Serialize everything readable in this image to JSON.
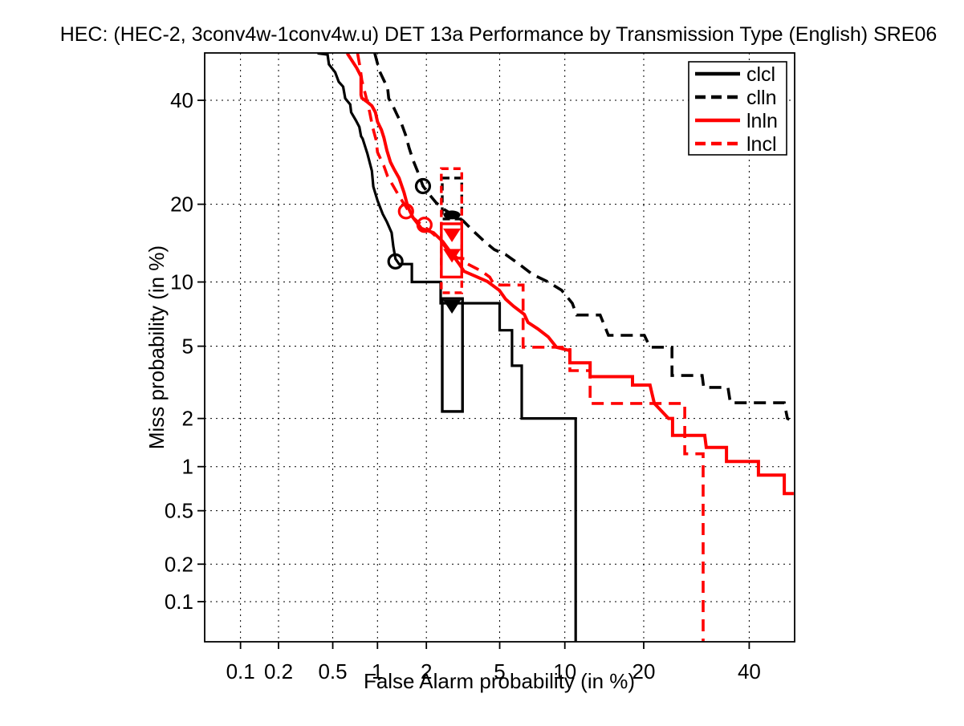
{
  "title": "HEC: (HEC-2, 3conv4w-1conv4w.u) DET 13a Performance by Transmission Type (English) SRE06",
  "axes": {
    "x_label": "False Alarm probability (in %)",
    "y_label": "Miss probability (in %)",
    "ticks": [
      0.1,
      0.2,
      0.5,
      1,
      2,
      5,
      10,
      20,
      40
    ]
  },
  "legend": {
    "position": "upper right",
    "items": [
      "clcl",
      "clln",
      "lnln",
      "lncl"
    ]
  },
  "colors": {
    "black": "#000000",
    "red": "#ff0000",
    "background": "#ffffff"
  },
  "chart_data": {
    "type": "line",
    "subtype": "DET curve, both axes on normal-deviate (probit) scale",
    "title": "HEC: (HEC-2, 3conv4w-1conv4w.u) DET 13a Performance by Transmission Type (English) SRE06",
    "xlabel": "False Alarm probability (in %)",
    "ylabel": "Miss probability (in %)",
    "xlim_pct": [
      0.046,
      50
    ],
    "ylim_pct": [
      0.046,
      50.6
    ],
    "grid": true,
    "legend_position": "upper right",
    "series": [
      {
        "name": "clcl",
        "color": "#000000",
        "line_style": "solid",
        "points": [
          [
            0.39,
            50.5
          ],
          [
            0.46,
            50.2
          ],
          [
            0.47,
            48
          ],
          [
            0.52,
            46.2
          ],
          [
            0.55,
            44.1
          ],
          [
            0.59,
            43
          ],
          [
            0.61,
            40.4
          ],
          [
            0.66,
            39.1
          ],
          [
            0.67,
            37.4
          ],
          [
            0.72,
            35.7
          ],
          [
            0.76,
            34.3
          ],
          [
            0.78,
            32.4
          ],
          [
            0.8,
            31.9
          ],
          [
            0.86,
            28.9
          ],
          [
            0.92,
            25.7
          ],
          [
            0.94,
            22.9
          ],
          [
            1.0,
            20.6
          ],
          [
            1.08,
            18.5
          ],
          [
            1.15,
            17.3
          ],
          [
            1.23,
            15.8
          ],
          [
            1.26,
            14.0
          ],
          [
            1.3,
            12.5
          ],
          [
            1.37,
            11.9
          ],
          [
            1.64,
            11.9
          ],
          [
            1.64,
            10.0
          ],
          [
            2.42,
            10.0
          ],
          [
            2.42,
            8.05
          ],
          [
            5.0,
            8.05
          ],
          [
            5.0,
            6.0
          ],
          [
            5.75,
            6.0
          ],
          [
            5.75,
            3.96
          ],
          [
            6.4,
            3.96
          ],
          [
            6.4,
            2.0
          ],
          [
            11.1,
            2.0
          ],
          [
            11.1,
            0.046
          ]
        ],
        "min_dcf": [
          1.3,
          12.2
        ],
        "actual_dcf": [
          2.8,
          7.85
        ],
        "actual_marker": "triangle",
        "ci_box_fa": [
          2.47,
          3.2
        ],
        "ci_box_miss": [
          2.2,
          8.45
        ]
      },
      {
        "name": "clln",
        "color": "#000000",
        "line_style": "dashed",
        "points": [
          [
            0.96,
            50.5
          ],
          [
            1.03,
            46.5
          ],
          [
            1.1,
            44.4
          ],
          [
            1.16,
            42.7
          ],
          [
            1.18,
            40.4
          ],
          [
            1.26,
            38.6
          ],
          [
            1.33,
            36.9
          ],
          [
            1.42,
            34.9
          ],
          [
            1.5,
            32.7
          ],
          [
            1.58,
            30.0
          ],
          [
            1.67,
            27.6
          ],
          [
            1.77,
            25.7
          ],
          [
            1.91,
            23.0
          ],
          [
            2.08,
            21.6
          ],
          [
            2.27,
            20.3
          ],
          [
            2.49,
            19.3
          ],
          [
            2.86,
            18.3
          ],
          [
            3.22,
            17.5
          ],
          [
            3.67,
            16.0
          ],
          [
            4.16,
            14.7
          ],
          [
            4.7,
            13.6
          ],
          [
            5.35,
            13.0
          ],
          [
            6.13,
            12.0
          ],
          [
            7.17,
            10.8
          ],
          [
            8.47,
            10.0
          ],
          [
            9.7,
            9.2
          ],
          [
            10.75,
            8.05
          ],
          [
            11.2,
            7.1
          ],
          [
            13.9,
            7.1
          ],
          [
            14.95,
            5.67
          ],
          [
            20.1,
            5.67
          ],
          [
            21.0,
            4.94
          ],
          [
            24.7,
            4.94
          ],
          [
            24.7,
            3.51
          ],
          [
            30.3,
            3.51
          ],
          [
            30.6,
            3.02
          ],
          [
            35.5,
            3.02
          ],
          [
            36.0,
            2.47
          ],
          [
            47.7,
            2.47
          ],
          [
            48.4,
            2.0
          ],
          [
            48.8,
            1.97
          ]
        ],
        "min_dcf": [
          1.91,
          23.0
        ],
        "actual_dcf": [
          2.8,
          18.35
        ],
        "actual_marker": "ellipse",
        "ci_box_fa": [
          2.47,
          3.17
        ],
        "ci_box_miss": [
          17.75,
          24.4
        ]
      },
      {
        "name": "lnln",
        "color": "#ff0000",
        "line_style": "solid",
        "points": [
          [
            0.63,
            50.5
          ],
          [
            0.73,
            47.2
          ],
          [
            0.78,
            45.3
          ],
          [
            0.78,
            41.2
          ],
          [
            0.79,
            40.5
          ],
          [
            0.86,
            39.6
          ],
          [
            0.92,
            38.8
          ],
          [
            0.97,
            37.4
          ],
          [
            1.0,
            35.4
          ],
          [
            1.06,
            33.7
          ],
          [
            1.1,
            32.1
          ],
          [
            1.15,
            29.5
          ],
          [
            1.21,
            27.3
          ],
          [
            1.28,
            25.9
          ],
          [
            1.37,
            24.4
          ],
          [
            1.47,
            21.9
          ],
          [
            1.55,
            19.6
          ],
          [
            1.67,
            17.9
          ],
          [
            1.87,
            16.4
          ],
          [
            2.2,
            15.8
          ],
          [
            2.49,
            14.6
          ],
          [
            2.77,
            13.2
          ],
          [
            3.07,
            11.9
          ],
          [
            3.26,
            11.1
          ],
          [
            3.74,
            10.6
          ],
          [
            4.33,
            10.05
          ],
          [
            4.98,
            9.2
          ],
          [
            5.35,
            8.4
          ],
          [
            5.85,
            7.8
          ],
          [
            6.58,
            7.15
          ],
          [
            6.85,
            6.55
          ],
          [
            7.6,
            6.1
          ],
          [
            8.47,
            5.57
          ],
          [
            9.2,
            4.94
          ],
          [
            10.5,
            4.75
          ],
          [
            10.5,
            4.1
          ],
          [
            12.7,
            4.1
          ],
          [
            12.7,
            3.46
          ],
          [
            18.3,
            3.46
          ],
          [
            18.3,
            3.11
          ],
          [
            21.0,
            3.11
          ],
          [
            21.7,
            2.45
          ],
          [
            24.1,
            2.0
          ],
          [
            24.8,
            2.0
          ],
          [
            24.8,
            1.58
          ],
          [
            30.8,
            1.58
          ],
          [
            31.1,
            1.33
          ],
          [
            35.2,
            1.33
          ],
          [
            35.2,
            1.08
          ],
          [
            42.0,
            1.08
          ],
          [
            42.0,
            0.88
          ],
          [
            47.7,
            0.88
          ],
          [
            47.7,
            0.66
          ],
          [
            49.8,
            0.66
          ]
        ],
        "min_dcf": [
          1.51,
          18.9
        ],
        "actual_dcf": [
          2.8,
          15.6
        ],
        "actual_marker": "triangle",
        "ci_box_fa": [
          2.44,
          3.17
        ],
        "ci_box_miss": [
          10.5,
          17.05
        ]
      },
      {
        "name": "lncl",
        "color": "#ff0000",
        "line_style": "dashed",
        "points": [
          [
            0.74,
            50.5
          ],
          [
            0.77,
            47.2
          ],
          [
            0.79,
            44.4
          ],
          [
            0.84,
            40.9
          ],
          [
            0.89,
            37.4
          ],
          [
            0.93,
            34.3
          ],
          [
            0.98,
            31.6
          ],
          [
            1.0,
            29.2
          ],
          [
            1.1,
            26.6
          ],
          [
            1.16,
            24.7
          ],
          [
            1.26,
            23.0
          ],
          [
            1.37,
            21.3
          ],
          [
            1.51,
            19.6
          ],
          [
            1.64,
            18.1
          ],
          [
            1.81,
            17.2
          ],
          [
            1.96,
            16.6
          ],
          [
            2.2,
            15.6
          ],
          [
            2.45,
            14.6
          ],
          [
            2.65,
            13.5
          ],
          [
            3.0,
            12.6
          ],
          [
            3.33,
            12.5
          ],
          [
            3.42,
            11.9
          ],
          [
            4.05,
            11.1
          ],
          [
            4.45,
            10.5
          ],
          [
            4.7,
            9.7
          ],
          [
            6.5,
            9.7
          ],
          [
            6.5,
            4.94
          ],
          [
            10.5,
            4.94
          ],
          [
            10.5,
            3.73
          ],
          [
            12.7,
            3.73
          ],
          [
            12.7,
            2.45
          ],
          [
            27.0,
            2.45
          ],
          [
            27.0,
            1.21
          ],
          [
            30.5,
            1.21
          ],
          [
            30.5,
            0.046
          ]
        ],
        "min_dcf": [
          1.95,
          16.9
        ],
        "actual_dcf": [
          2.8,
          13.0
        ],
        "actual_marker": "triangle",
        "ci_box_fa": [
          2.44,
          3.17
        ],
        "ci_box_miss": [
          8.97,
          26.1
        ]
      }
    ]
  }
}
